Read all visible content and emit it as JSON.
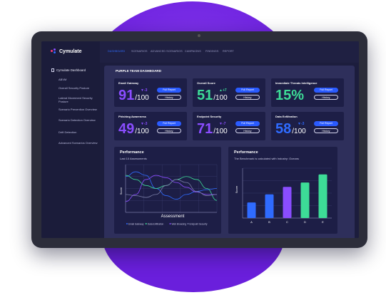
{
  "colors": {
    "blue": "#2f6bff",
    "purple": "#8a4dff",
    "green": "#3ddc97"
  },
  "logo": {
    "text": "Cymulate"
  },
  "sidebar": {
    "header": "Cymulate Dashboard",
    "items": [
      "ABVM",
      "Overall Security Posture",
      "Lateral Movement Security Posture",
      "Scenario Prevention Overview",
      "Scenario Detection Overview",
      "Drift Detection",
      "Advanced Scenarios Overview"
    ]
  },
  "topbar": {
    "tabs": [
      "DASHBOARD",
      "SCENARIOS",
      "ADVANCED SCENARIOS",
      "CAMPAIGNS",
      "FINDINGS",
      "REPORT"
    ]
  },
  "main": {
    "title": "PURPLE TEAM DASHBOARD",
    "full_report_label": "Full Report",
    "history_label": "History",
    "cards": [
      {
        "title": "Email Gateway",
        "score": "91",
        "suffix": "/100",
        "delta": "-3",
        "color": "#8a4dff",
        "delta_color": "#8a4dff"
      },
      {
        "title": "Overall Score",
        "score": "51",
        "suffix": "/100",
        "delta": "+7",
        "color": "#3ddc97",
        "delta_color": "#3ddc97"
      },
      {
        "title": "Immediate Threats Intelligence",
        "score": "15%",
        "suffix": "",
        "delta": "",
        "color": "#3ddc97",
        "delta_color": "#3ddc97"
      },
      {
        "title": "Phishing Awareness",
        "score": "49",
        "suffix": "/100",
        "delta": "-3",
        "color": "#8a4dff",
        "delta_color": "#8a4dff"
      },
      {
        "title": "Endpoint Security",
        "score": "71",
        "suffix": "/100",
        "delta": "-7",
        "color": "#8a4dff",
        "delta_color": "#8a4dff"
      },
      {
        "title": "Data Exfiltration",
        "score": "58",
        "suffix": "/100",
        "delta": "-3",
        "color": "#2f6bff",
        "delta_color": "#2f6bff"
      }
    ]
  },
  "chart_data": [
    {
      "type": "line",
      "title": "Performance",
      "subtitle": "Last 10 Assessments",
      "xlabel": "Assessment",
      "ylabel": "Score",
      "grid": true,
      "x": [
        1,
        2,
        3,
        4,
        5,
        6,
        7,
        8,
        9,
        10
      ],
      "series": [
        {
          "name": "Email Gateway",
          "color": "#2f6bff",
          "values": [
            60,
            68,
            62,
            40,
            28,
            22,
            30,
            35,
            38,
            40
          ]
        },
        {
          "name": "Data Exfiltration",
          "color": "#3ddc97",
          "values": [
            62,
            55,
            45,
            40,
            45,
            55,
            60,
            55,
            40,
            20
          ]
        },
        {
          "name": "Web Browsing",
          "color": "#8a4dff",
          "values": [
            18,
            30,
            55,
            62,
            58,
            50,
            42,
            34,
            30,
            30
          ]
        },
        {
          "name": "Endpoint Security",
          "color": "#7b7fa8",
          "values": [
            30,
            28,
            25,
            30,
            45,
            55,
            50,
            35,
            28,
            30
          ]
        }
      ]
    },
    {
      "type": "bar",
      "title": "Performance",
      "subtitle": "The Benchmark is calculated with Industry: Oceans",
      "ylabel": "Score",
      "categories": [
        "A",
        "B",
        "C",
        "D",
        "E"
      ],
      "values": [
        25,
        38,
        50,
        57,
        70
      ],
      "colors": [
        "#2f6bff",
        "#2f6bff",
        "#8a4dff",
        "#3ddc97",
        "#3ddc97"
      ],
      "ylim": [
        0,
        80
      ]
    }
  ]
}
